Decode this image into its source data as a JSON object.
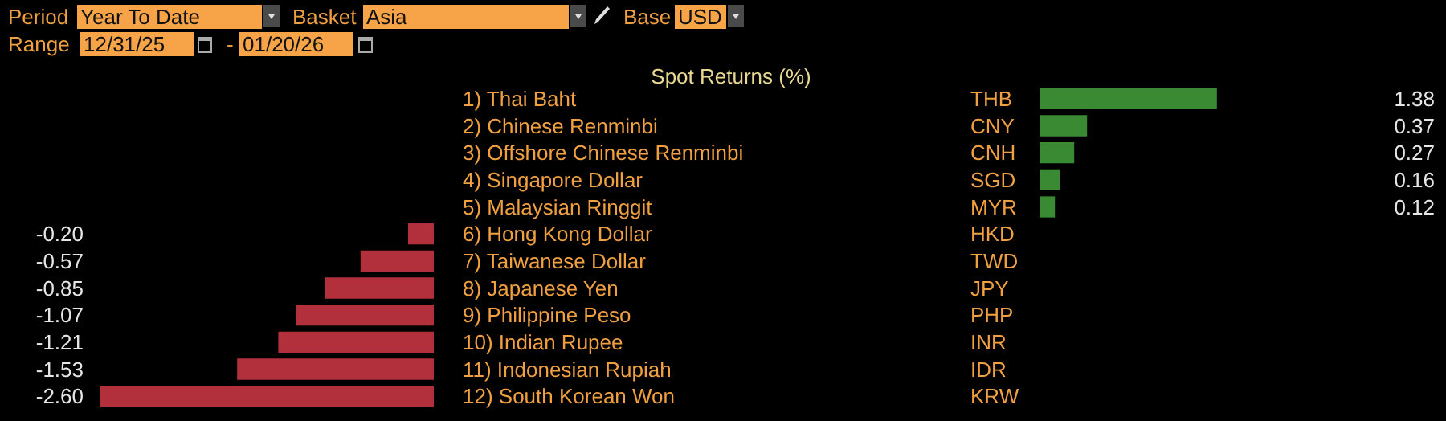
{
  "chart_data": [
    {
      "type": "bar",
      "orientation": "horizontal",
      "title": "Spot Returns (%)",
      "categories": [
        "1) Thai Baht",
        "2) Chinese Renminbi",
        "3) Offshore Chinese Renminbi",
        "4) Singapore Dollar",
        "5) Malaysian Ringgit",
        "6) Hong Kong Dollar",
        "7) Taiwanese Dollar",
        "8) Japanese Yen",
        "9) Philippine Peso",
        "10) Indian Rupee",
        "11) Indonesian Rupiah",
        "12) South Korean Won"
      ],
      "values": [
        null,
        null,
        null,
        null,
        null,
        -0.2,
        -0.57,
        -0.85,
        -1.07,
        -1.21,
        -1.53,
        -2.6
      ],
      "value_labels": [
        null,
        null,
        null,
        null,
        null,
        "-0.20",
        "-0.57",
        "-0.85",
        "-1.07",
        "-1.21",
        "-1.53",
        "-2.60"
      ],
      "color": "#b2303b",
      "annotations": [
        "Period",
        "Year To Date",
        "Basket",
        "Asia",
        "Base",
        "USD",
        "Range",
        "12/31/25",
        "-",
        "01/20/26"
      ]
    },
    {
      "type": "bar",
      "orientation": "horizontal",
      "categories": [
        "THB",
        "CNY",
        "CNH",
        "SGD",
        "MYR",
        "HKD",
        "TWD",
        "JPY",
        "PHP",
        "INR",
        "IDR",
        "KRW"
      ],
      "values": [
        1.38,
        0.37,
        0.27,
        0.16,
        0.12,
        null,
        null,
        null,
        null,
        null,
        null,
        null
      ],
      "value_labels": [
        "1.38",
        "0.37",
        "0.27",
        "0.16",
        "0.12",
        null,
        null,
        null,
        null,
        null,
        null,
        null
      ],
      "color": "#3a8a34"
    }
  ]
}
